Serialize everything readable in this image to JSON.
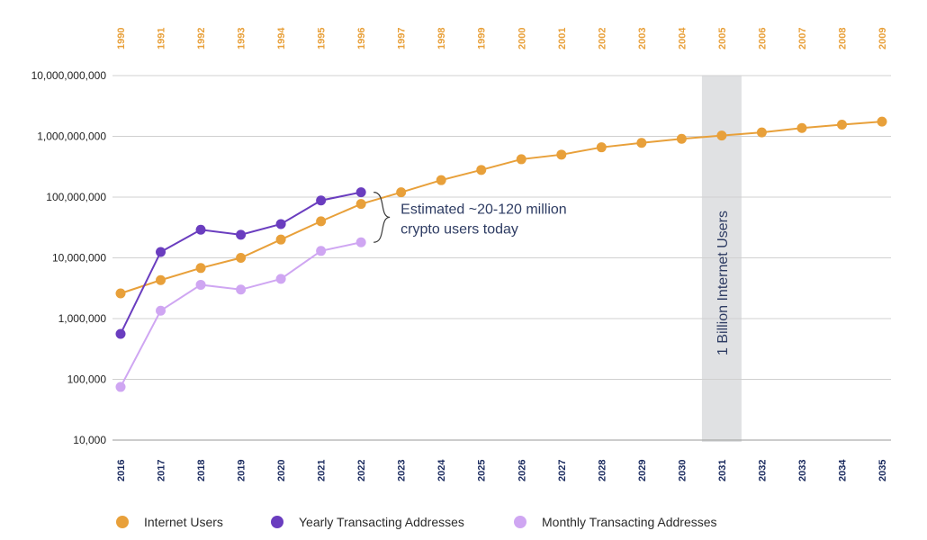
{
  "chart_data": {
    "type": "line",
    "y_scale": "log",
    "ylim": [
      10000,
      10000000000
    ],
    "y_ticks": [
      10000,
      100000,
      1000000,
      10000000,
      100000000,
      1000000000,
      10000000000
    ],
    "y_tick_labels": [
      "10,000",
      "100,000",
      "1,000,000",
      "10,000,000",
      "100,000,000",
      "1,000,000,000",
      "10,000,000,000"
    ],
    "x": [
      "2016",
      "2017",
      "2018",
      "2019",
      "2020",
      "2021",
      "2022",
      "2023",
      "2024",
      "2025",
      "2026",
      "2027",
      "2028",
      "2029",
      "2030",
      "2031",
      "2032",
      "2033",
      "2034",
      "2035"
    ],
    "x_top": [
      "1990",
      "1991",
      "1992",
      "1993",
      "1994",
      "1995",
      "1996",
      "1997",
      "1998",
      "1999",
      "2000",
      "2001",
      "2002",
      "2003",
      "2004",
      "2005",
      "2006",
      "2007",
      "2008",
      "2009"
    ],
    "grid": true,
    "series": [
      {
        "name": "Internet Users",
        "color": "#e8a03a",
        "values": [
          2600000,
          4300000,
          6800000,
          10000000,
          20000000,
          40000000,
          77000000,
          120000000,
          190000000,
          280000000,
          420000000,
          500000000,
          660000000,
          780000000,
          910000000,
          1030000000,
          1160000000,
          1370000000,
          1560000000,
          1750000000
        ]
      },
      {
        "name": "Yearly Transacting Addresses",
        "color": "#6a3dbf",
        "values": [
          560000,
          12500000,
          29000000,
          24000000,
          36000000,
          88000000,
          120000000,
          null,
          null,
          null,
          null,
          null,
          null,
          null,
          null,
          null,
          null,
          null,
          null,
          null
        ]
      },
      {
        "name": "Monthly Transacting Addresses",
        "color": "#cfa6f2",
        "values": [
          75000,
          1350000,
          3600000,
          3000000,
          4500000,
          13000000,
          18000000,
          null,
          null,
          null,
          null,
          null,
          null,
          null,
          null,
          null,
          null,
          null,
          null,
          null
        ]
      }
    ],
    "annotations": [
      {
        "text_lines": [
          "Estimated ~20-120 million",
          "crypto users today"
        ]
      },
      {
        "text": "1 Billion Internet Users",
        "highlight_category": "2031",
        "band_color": "#e0e1e3"
      }
    ],
    "legend_position": "bottom-left",
    "highlight_tick": "2031",
    "highlight_tick_top": "2005"
  }
}
